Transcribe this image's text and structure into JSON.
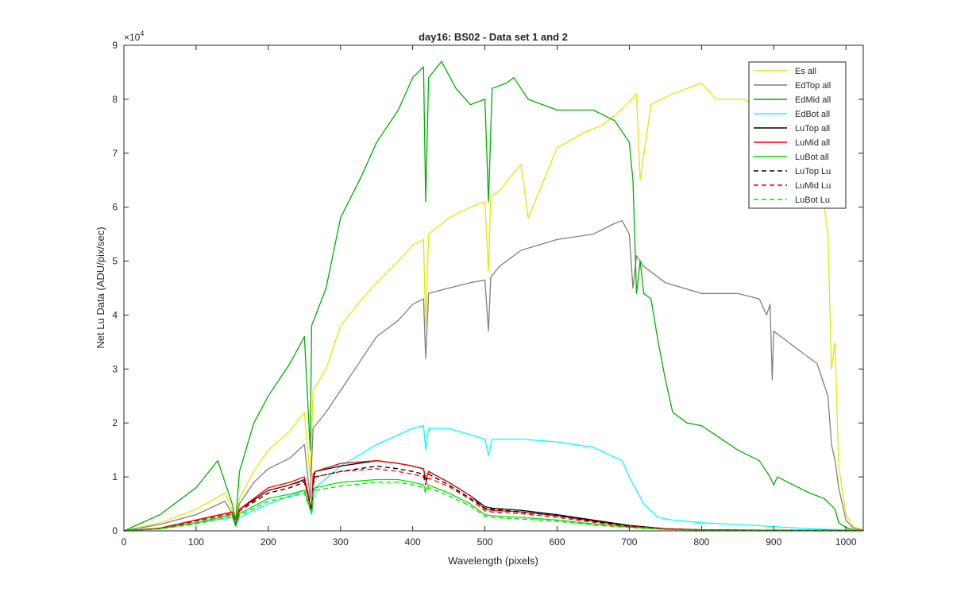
{
  "chart_data": {
    "type": "line",
    "title": "day16: BS02 - Data set 1 and 2",
    "xlabel": "Wavelength (pixels)",
    "ylabel": "Net Lu Data (ADU/pix/sec)",
    "xlim": [
      0,
      1024
    ],
    "ylim": [
      0,
      90000
    ],
    "x_ticks": [
      0,
      100,
      200,
      300,
      400,
      500,
      600,
      700,
      800,
      900,
      1000
    ],
    "y_ticks": [
      0,
      10000,
      20000,
      30000,
      40000,
      50000,
      60000,
      70000,
      80000,
      90000
    ],
    "y_tick_labels": [
      "0",
      "1",
      "2",
      "3",
      "4",
      "5",
      "6",
      "7",
      "8",
      "9"
    ],
    "y_exponent": "×10",
    "y_exponent_power": "4",
    "grid": false,
    "legend_position": "top-right",
    "series": [
      {
        "name": "Es  all",
        "color": "#e6e600",
        "dash": "solid",
        "x": [
          0,
          50,
          100,
          140,
          155,
          160,
          180,
          200,
          230,
          250,
          258,
          262,
          280,
          300,
          330,
          350,
          380,
          400,
          415,
          418,
          422,
          450,
          480,
          500,
          505,
          508,
          520,
          550,
          560,
          600,
          640,
          660,
          680,
          700,
          710,
          715,
          730,
          760,
          800,
          820,
          860,
          880,
          900,
          920,
          940,
          960,
          975,
          980,
          985,
          990,
          1000,
          1010,
          1024
        ],
        "y": [
          0,
          1500,
          4000,
          7000,
          2500,
          6000,
          11000,
          15000,
          18500,
          22000,
          10000,
          26000,
          30000,
          38000,
          43000,
          46000,
          50000,
          53000,
          54000,
          38000,
          55000,
          58000,
          60000,
          61000,
          48000,
          62000,
          63000,
          68000,
          58000,
          71000,
          74000,
          75000,
          77000,
          79500,
          81000,
          65000,
          79000,
          81000,
          83000,
          80000,
          80000,
          78000,
          79000,
          77000,
          75000,
          70000,
          55000,
          30000,
          35000,
          12000,
          3000,
          800,
          200
        ]
      },
      {
        "name": "EdTop  all",
        "color": "#808080",
        "dash": "solid",
        "x": [
          0,
          50,
          100,
          140,
          155,
          160,
          180,
          200,
          230,
          250,
          258,
          262,
          280,
          300,
          330,
          350,
          380,
          400,
          415,
          418,
          422,
          450,
          480,
          500,
          505,
          508,
          520,
          550,
          600,
          650,
          680,
          690,
          700,
          705,
          710,
          720,
          750,
          800,
          850,
          880,
          890,
          895,
          898,
          900,
          920,
          940,
          960,
          975,
          980,
          985,
          990,
          1000,
          1010,
          1024
        ],
        "y": [
          0,
          1200,
          3000,
          5500,
          2000,
          5000,
          9000,
          11500,
          13500,
          16000,
          6000,
          19000,
          22000,
          26000,
          32000,
          36000,
          39000,
          42000,
          43000,
          32000,
          44000,
          45000,
          46000,
          46500,
          37000,
          47000,
          49000,
          52000,
          54000,
          55000,
          57000,
          57500,
          55000,
          45000,
          51000,
          49000,
          46000,
          44000,
          44000,
          43000,
          40000,
          42000,
          28000,
          37000,
          35000,
          33000,
          31000,
          25000,
          16000,
          13000,
          8000,
          2000,
          500,
          100
        ]
      },
      {
        "name": "EdMid  all",
        "color": "#00b000",
        "dash": "solid",
        "x": [
          0,
          50,
          100,
          130,
          150,
          155,
          160,
          180,
          200,
          230,
          250,
          258,
          260,
          280,
          300,
          330,
          350,
          380,
          400,
          415,
          418,
          422,
          440,
          460,
          480,
          500,
          505,
          510,
          530,
          540,
          560,
          600,
          650,
          680,
          700,
          705,
          710,
          715,
          720,
          730,
          740,
          750,
          760,
          780,
          800,
          850,
          880,
          895,
          900,
          905,
          920,
          950,
          970,
          985,
          990,
          1000,
          1010,
          1024
        ],
        "y": [
          0,
          3000,
          8000,
          13000,
          5000,
          2000,
          11000,
          20000,
          25000,
          31000,
          36000,
          15000,
          38000,
          45000,
          58000,
          66000,
          72000,
          78000,
          84000,
          86000,
          61000,
          84000,
          87000,
          82000,
          79000,
          80000,
          61000,
          82000,
          83000,
          84000,
          80000,
          78000,
          78000,
          76000,
          72000,
          65000,
          44000,
          50000,
          44000,
          43000,
          35000,
          28000,
          22000,
          20000,
          19500,
          15000,
          13000,
          10000,
          8500,
          10000,
          9000,
          7000,
          6000,
          4000,
          1500,
          600,
          200,
          50
        ]
      },
      {
        "name": "EdBot  all",
        "color": "#00ffff",
        "dash": "solid",
        "x": [
          0,
          50,
          100,
          150,
          155,
          160,
          200,
          250,
          260,
          265,
          300,
          350,
          400,
          415,
          418,
          422,
          450,
          500,
          505,
          510,
          550,
          600,
          650,
          690,
          700,
          720,
          740,
          760,
          800,
          850,
          900,
          950,
          1000,
          1024
        ],
        "y": [
          0,
          400,
          1500,
          2500,
          800,
          2500,
          5000,
          7500,
          3000,
          8000,
          12000,
          16000,
          19000,
          19500,
          15000,
          19000,
          19000,
          17000,
          14000,
          17000,
          17000,
          16500,
          15500,
          13000,
          10000,
          5000,
          2500,
          2000,
          1500,
          1200,
          800,
          400,
          200,
          50
        ]
      },
      {
        "name": "LuTop  all",
        "color": "#000000",
        "dash": "solid",
        "x": [
          0,
          50,
          100,
          150,
          155,
          160,
          200,
          230,
          250,
          260,
          262,
          265,
          300,
          350,
          380,
          400,
          415,
          418,
          422,
          450,
          480,
          500,
          510,
          550,
          600,
          650,
          700,
          750,
          800,
          900,
          1024
        ],
        "y": [
          0,
          500,
          2000,
          3500,
          1200,
          4000,
          7500,
          8500,
          9500,
          4000,
          9000,
          11000,
          12000,
          13000,
          12500,
          12000,
          11500,
          9500,
          11000,
          9000,
          6500,
          4500,
          4200,
          3800,
          3000,
          2000,
          1000,
          400,
          200,
          100,
          50
        ]
      },
      {
        "name": "LuMid  all",
        "color": "#ff0000",
        "dash": "solid",
        "x": [
          0,
          50,
          100,
          150,
          155,
          160,
          200,
          230,
          250,
          260,
          262,
          265,
          300,
          350,
          380,
          400,
          415,
          418,
          422,
          450,
          480,
          500,
          510,
          550,
          600,
          650,
          700,
          750,
          800,
          900,
          1024
        ],
        "y": [
          0,
          500,
          2000,
          3500,
          1200,
          4000,
          8000,
          9000,
          10000,
          4000,
          10500,
          11000,
          12500,
          13000,
          12500,
          12000,
          11500,
          9500,
          11000,
          9000,
          6500,
          4000,
          3800,
          3500,
          2800,
          1800,
          900,
          400,
          200,
          100,
          50
        ]
      },
      {
        "name": "LuBot  all",
        "color": "#00e000",
        "dash": "solid",
        "x": [
          0,
          50,
          100,
          150,
          155,
          160,
          200,
          230,
          250,
          260,
          262,
          265,
          300,
          350,
          380,
          400,
          415,
          418,
          422,
          450,
          480,
          500,
          510,
          550,
          600,
          650,
          700,
          750,
          800,
          900,
          1024
        ],
        "y": [
          0,
          400,
          1500,
          3000,
          1000,
          3200,
          6000,
          6800,
          7500,
          3500,
          7500,
          8000,
          9000,
          9500,
          9500,
          9000,
          8500,
          7500,
          8500,
          7000,
          5000,
          3000,
          2800,
          2500,
          2000,
          1300,
          700,
          300,
          150,
          80,
          40
        ]
      },
      {
        "name": "LuTop  Lu",
        "color": "#000000",
        "dash": "dashed",
        "x": [
          0,
          50,
          100,
          150,
          155,
          160,
          200,
          230,
          250,
          260,
          262,
          265,
          300,
          350,
          380,
          400,
          415,
          418,
          422,
          450,
          480,
          500,
          510,
          550,
          600,
          650,
          700,
          750,
          800,
          900,
          1024
        ],
        "y": [
          0,
          450,
          1800,
          3200,
          1100,
          3700,
          7000,
          8000,
          9000,
          3800,
          8500,
          10000,
          11000,
          12000,
          11500,
          11000,
          10500,
          9000,
          10500,
          8500,
          6000,
          4200,
          4000,
          3500,
          2800,
          1800,
          900,
          350,
          180,
          90,
          40
        ]
      },
      {
        "name": "LuMid  Lu",
        "color": "#ff0000",
        "dash": "dashed",
        "x": [
          0,
          50,
          100,
          150,
          155,
          160,
          200,
          230,
          250,
          260,
          262,
          265,
          300,
          350,
          380,
          400,
          415,
          418,
          422,
          450,
          480,
          500,
          510,
          550,
          600,
          650,
          700,
          750,
          800,
          900,
          1024
        ],
        "y": [
          0,
          450,
          1800,
          3200,
          1100,
          3700,
          7500,
          8500,
          9200,
          3800,
          9200,
          10000,
          11000,
          11500,
          11000,
          10500,
          10000,
          8500,
          9800,
          8200,
          5800,
          3700,
          3500,
          3200,
          2500,
          1600,
          800,
          350,
          180,
          90,
          40
        ]
      },
      {
        "name": "LuBot  Lu",
        "color": "#00e000",
        "dash": "dashed",
        "x": [
          0,
          50,
          100,
          150,
          155,
          160,
          200,
          230,
          250,
          260,
          262,
          265,
          300,
          350,
          380,
          400,
          415,
          418,
          422,
          450,
          480,
          500,
          510,
          550,
          600,
          650,
          700,
          750,
          800,
          900,
          1024
        ],
        "y": [
          0,
          350,
          1300,
          2700,
          900,
          2900,
          5500,
          6300,
          7000,
          3200,
          7000,
          7500,
          8300,
          9000,
          9000,
          8500,
          8000,
          7000,
          8000,
          6500,
          4600,
          2700,
          2500,
          2200,
          1800,
          1100,
          600,
          250,
          120,
          60,
          30
        ]
      }
    ]
  }
}
